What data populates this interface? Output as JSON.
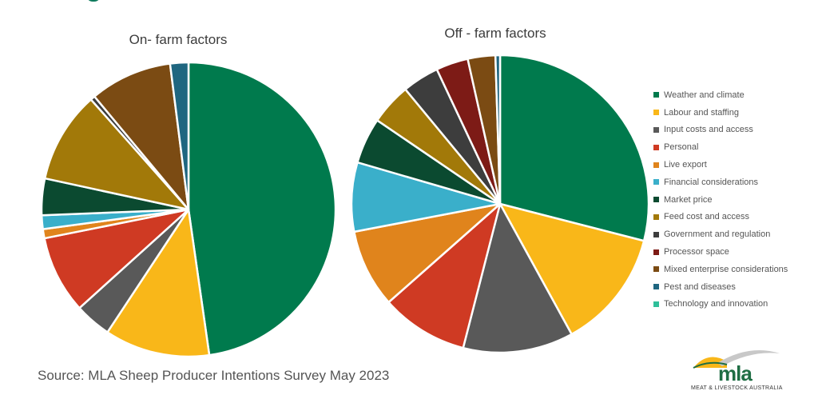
{
  "source": "Source: MLA Sheep Producer Intentions Survey May 2023",
  "logo": {
    "text": "mla",
    "subtitle": "MEAT & LIVESTOCK AUSTRALIA"
  },
  "legend": [
    {
      "label": "Weather and climate",
      "color": "#007a4d"
    },
    {
      "label": "Labour and staffing",
      "color": "#f9b719"
    },
    {
      "label": "Input costs and access",
      "color": "#595959"
    },
    {
      "label": "Personal",
      "color": "#cf3a23"
    },
    {
      "label": "Live export",
      "color": "#e0841c"
    },
    {
      "label": "Financial considerations",
      "color": "#3aafca"
    },
    {
      "label": "Market price",
      "color": "#0b4a30"
    },
    {
      "label": "Feed cost and access",
      "color": "#a27909"
    },
    {
      "label": "Government and regulation",
      "color": "#3d3d3d"
    },
    {
      "label": "Processor space",
      "color": "#7d1b16"
    },
    {
      "label": "Mixed enterprise considerations",
      "color": "#7b4b13"
    },
    {
      "label": "Pest and diseases",
      "color": "#1f6680"
    },
    {
      "label": "Technology and innovation",
      "color": "#2fbf9a"
    }
  ],
  "chart_data": [
    {
      "type": "pie",
      "title": "On- farm factors",
      "unit": "%",
      "categories": [
        "Weather and climate",
        "Labour and staffing",
        "Input costs and access",
        "Personal",
        "Live export",
        "Financial considerations",
        "Market price",
        "Feed cost and access",
        "Government and regulation",
        "Processor space",
        "Mixed enterprise considerations",
        "Pest and diseases",
        "Technology and innovation"
      ],
      "values": [
        47.5,
        11.5,
        4.0,
        8.5,
        1.0,
        1.5,
        4.0,
        10.0,
        0.5,
        0.0,
        9.0,
        2.0,
        0.0
      ]
    },
    {
      "type": "pie",
      "title": "Off - farm factors",
      "unit": "%",
      "categories": [
        "Weather and climate",
        "Labour and staffing",
        "Input costs and access",
        "Personal",
        "Live export",
        "Financial considerations",
        "Market price",
        "Feed cost and access",
        "Government and regulation",
        "Processor space",
        "Mixed enterprise considerations",
        "Pest and diseases",
        "Technology and innovation"
      ],
      "values": [
        29.0,
        13.0,
        12.0,
        9.5,
        8.5,
        7.5,
        5.0,
        4.5,
        4.0,
        3.5,
        3.0,
        0.5,
        0.0
      ]
    }
  ]
}
